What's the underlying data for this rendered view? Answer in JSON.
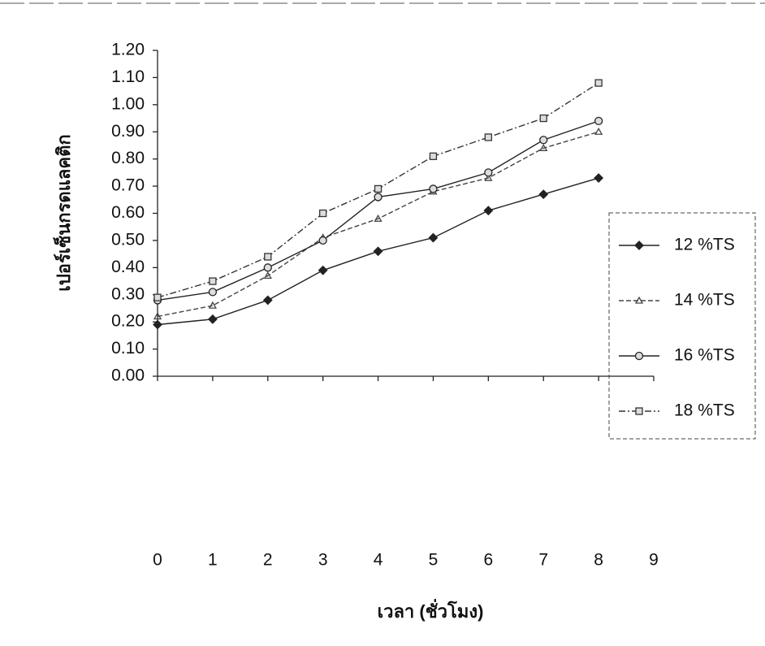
{
  "chart_data": {
    "type": "line",
    "x_label": "เวลา (ชั่วโมง)",
    "y_label": "เปอร์เซ็นกรดแลคติก",
    "x": [
      0,
      1,
      2,
      3,
      4,
      5,
      6,
      7,
      8
    ],
    "series": [
      {
        "name": "12 %TS",
        "color": "#222222",
        "marker": "diamond",
        "values": [
          0.19,
          0.21,
          0.28,
          0.39,
          0.46,
          0.51,
          0.61,
          0.67,
          0.73
        ]
      },
      {
        "name": "14 %TS",
        "color": "#444444",
        "marker": "triangle",
        "values": [
          0.22,
          0.26,
          0.37,
          0.51,
          0.58,
          0.68,
          0.73,
          0.84,
          0.9
        ]
      },
      {
        "name": "16 %TS",
        "color": "#222222",
        "marker": "circle",
        "values": [
          0.28,
          0.31,
          0.4,
          0.5,
          0.66,
          0.69,
          0.75,
          0.87,
          0.94
        ]
      },
      {
        "name": "18 %TS",
        "color": "#333333",
        "marker": "square",
        "values": [
          0.29,
          0.35,
          0.44,
          0.6,
          0.69,
          0.81,
          0.88,
          0.95,
          1.08
        ]
      }
    ],
    "xlim": [
      0,
      9
    ],
    "xticks": [
      0,
      1,
      2,
      3,
      4,
      5,
      6,
      7,
      8,
      9
    ],
    "ylim": [
      0,
      1.2
    ],
    "yticks": [
      {
        "value": 0,
        "label": "0.00"
      },
      {
        "value": 0.1,
        "label": "0.10"
      },
      {
        "value": 0.2,
        "label": "0.20"
      },
      {
        "value": 0.3,
        "label": "0.30"
      },
      {
        "value": 0.4,
        "label": "0.40"
      },
      {
        "value": 0.5,
        "label": "0.50"
      },
      {
        "value": 0.6,
        "label": "0.60"
      },
      {
        "value": 0.7,
        "label": "0.70"
      },
      {
        "value": 0.8,
        "label": "0.80"
      },
      {
        "value": 0.9,
        "label": "0.90"
      },
      {
        "value": 1.0,
        "label": "1.00"
      },
      {
        "value": 1.1,
        "label": "1.10"
      },
      {
        "value": 1.2,
        "label": "1.20"
      }
    ],
    "legend": "right"
  }
}
